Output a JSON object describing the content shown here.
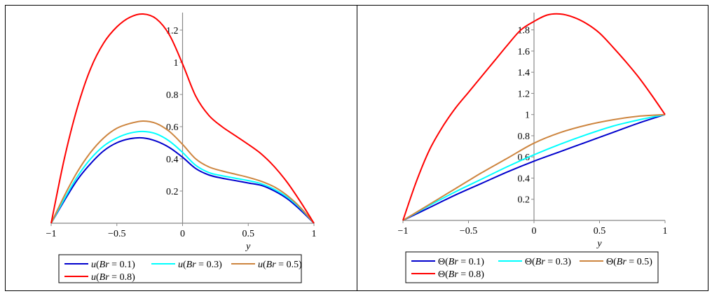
{
  "chart_data": [
    {
      "type": "line",
      "title": "",
      "xlabel": "y",
      "ylabel": "",
      "xlim": [
        -1,
        1
      ],
      "ylim": [
        0,
        1.3
      ],
      "xticks": [
        -1,
        -0.5,
        0,
        0.5,
        1
      ],
      "xtick_labels": [
        "-1",
        "-0.5",
        "0",
        "0.5",
        "1"
      ],
      "yticks": [
        0.2,
        0.4,
        0.6,
        0.8,
        1,
        1.2
      ],
      "ytick_labels": [
        "0.2",
        "0.4",
        "0.6",
        "0.8",
        "1",
        "1.2"
      ],
      "grid": false,
      "legend": {
        "position": "bottom",
        "columns": 3
      },
      "series": [
        {
          "name": "u(Br = 0.1)",
          "func": "u",
          "br": "0.1",
          "color": "#0000cd",
          "x": [
            -1,
            -0.9,
            -0.8,
            -0.7,
            -0.6,
            -0.5,
            -0.4,
            -0.3,
            -0.2,
            -0.1,
            0,
            0.1,
            0.2,
            0.3,
            0.4,
            0.5,
            0.6,
            0.7,
            0.8,
            0.9,
            1
          ],
          "y": [
            0,
            0.14,
            0.27,
            0.37,
            0.45,
            0.5,
            0.525,
            0.53,
            0.51,
            0.47,
            0.41,
            0.34,
            0.3,
            0.28,
            0.265,
            0.25,
            0.235,
            0.2,
            0.15,
            0.08,
            0
          ]
        },
        {
          "name": "u(Br = 0.3)",
          "func": "u",
          "br": "0.3",
          "color": "#00ffff",
          "x": [
            -1,
            -0.9,
            -0.8,
            -0.7,
            -0.6,
            -0.5,
            -0.4,
            -0.3,
            -0.2,
            -0.1,
            0,
            0.1,
            0.2,
            0.3,
            0.4,
            0.5,
            0.6,
            0.7,
            0.8,
            0.9,
            1
          ],
          "y": [
            0,
            0.15,
            0.29,
            0.4,
            0.48,
            0.53,
            0.56,
            0.57,
            0.555,
            0.51,
            0.44,
            0.36,
            0.315,
            0.295,
            0.28,
            0.265,
            0.245,
            0.21,
            0.16,
            0.09,
            0
          ]
        },
        {
          "name": "u(Br = 0.5)",
          "func": "u",
          "br": "0.5",
          "color": "#cd853f",
          "x": [
            -1,
            -0.9,
            -0.8,
            -0.7,
            -0.6,
            -0.5,
            -0.4,
            -0.3,
            -0.2,
            -0.1,
            0,
            0.1,
            0.2,
            0.3,
            0.4,
            0.5,
            0.6,
            0.7,
            0.8,
            0.9,
            1
          ],
          "y": [
            0,
            0.17,
            0.32,
            0.44,
            0.53,
            0.59,
            0.62,
            0.635,
            0.62,
            0.57,
            0.49,
            0.4,
            0.35,
            0.325,
            0.305,
            0.285,
            0.26,
            0.225,
            0.17,
            0.095,
            0
          ]
        },
        {
          "name": "u(Br = 0.8)",
          "func": "u",
          "br": "0.8",
          "color": "#ff0000",
          "x": [
            -1,
            -0.9,
            -0.8,
            -0.7,
            -0.6,
            -0.5,
            -0.4,
            -0.3,
            -0.2,
            -0.1,
            0,
            0.1,
            0.2,
            0.3,
            0.4,
            0.5,
            0.6,
            0.7,
            0.8,
            0.9,
            1
          ],
          "y": [
            0,
            0.4,
            0.72,
            0.96,
            1.12,
            1.22,
            1.28,
            1.3,
            1.27,
            1.17,
            0.99,
            0.79,
            0.67,
            0.6,
            0.545,
            0.49,
            0.43,
            0.35,
            0.25,
            0.13,
            0
          ]
        }
      ]
    },
    {
      "type": "line",
      "title": "",
      "xlabel": "y",
      "ylabel": "",
      "xlim": [
        -1,
        1
      ],
      "ylim": [
        0,
        1.95
      ],
      "xticks": [
        -1,
        -0.5,
        0,
        0.5,
        1
      ],
      "xtick_labels": [
        "-1",
        "-0.5",
        "0",
        "0.5",
        "1"
      ],
      "yticks": [
        0.2,
        0.4,
        0.6,
        0.8,
        1,
        1.2,
        1.4,
        1.6,
        1.8
      ],
      "ytick_labels": [
        "0.2",
        "0.4",
        "0.6",
        "0.8",
        "1",
        "1.2",
        "1.4",
        "1.6",
        "1.8"
      ],
      "grid": false,
      "legend": {
        "position": "bottom",
        "columns": 3
      },
      "series": [
        {
          "name": "Θ(Br = 0.1)",
          "func": "Θ",
          "br": "0.1",
          "color": "#0000cd",
          "x": [
            -1,
            -0.8,
            -0.6,
            -0.4,
            -0.2,
            0,
            0.2,
            0.4,
            0.6,
            0.8,
            1
          ],
          "y": [
            0,
            0.12,
            0.24,
            0.35,
            0.46,
            0.56,
            0.65,
            0.74,
            0.83,
            0.92,
            1.0
          ]
        },
        {
          "name": "Θ(Br = 0.3)",
          "func": "Θ",
          "br": "0.3",
          "color": "#00ffff",
          "x": [
            -1,
            -0.8,
            -0.6,
            -0.4,
            -0.2,
            0,
            0.2,
            0.4,
            0.6,
            0.8,
            1
          ],
          "y": [
            0,
            0.14,
            0.27,
            0.39,
            0.51,
            0.62,
            0.72,
            0.81,
            0.89,
            0.95,
            1.0
          ]
        },
        {
          "name": "Θ(Br = 0.5)",
          "func": "Θ",
          "br": "0.5",
          "color": "#cd853f",
          "x": [
            -1,
            -0.8,
            -0.6,
            -0.4,
            -0.2,
            0,
            0.2,
            0.4,
            0.6,
            0.8,
            1
          ],
          "y": [
            0,
            0.15,
            0.3,
            0.45,
            0.59,
            0.73,
            0.83,
            0.9,
            0.95,
            0.985,
            1.0
          ]
        },
        {
          "name": "Θ(Br = 0.8)",
          "func": "Θ",
          "br": "0.8",
          "color": "#ff0000",
          "x": [
            -1,
            -0.9,
            -0.8,
            -0.7,
            -0.6,
            -0.5,
            -0.4,
            -0.3,
            -0.2,
            -0.1,
            0,
            0.1,
            0.2,
            0.3,
            0.4,
            0.5,
            0.6,
            0.7,
            0.8,
            0.9,
            1
          ],
          "y": [
            0,
            0.36,
            0.66,
            0.88,
            1.06,
            1.21,
            1.36,
            1.51,
            1.66,
            1.8,
            1.88,
            1.94,
            1.95,
            1.92,
            1.86,
            1.77,
            1.64,
            1.5,
            1.35,
            1.18,
            1.0
          ]
        }
      ]
    }
  ]
}
